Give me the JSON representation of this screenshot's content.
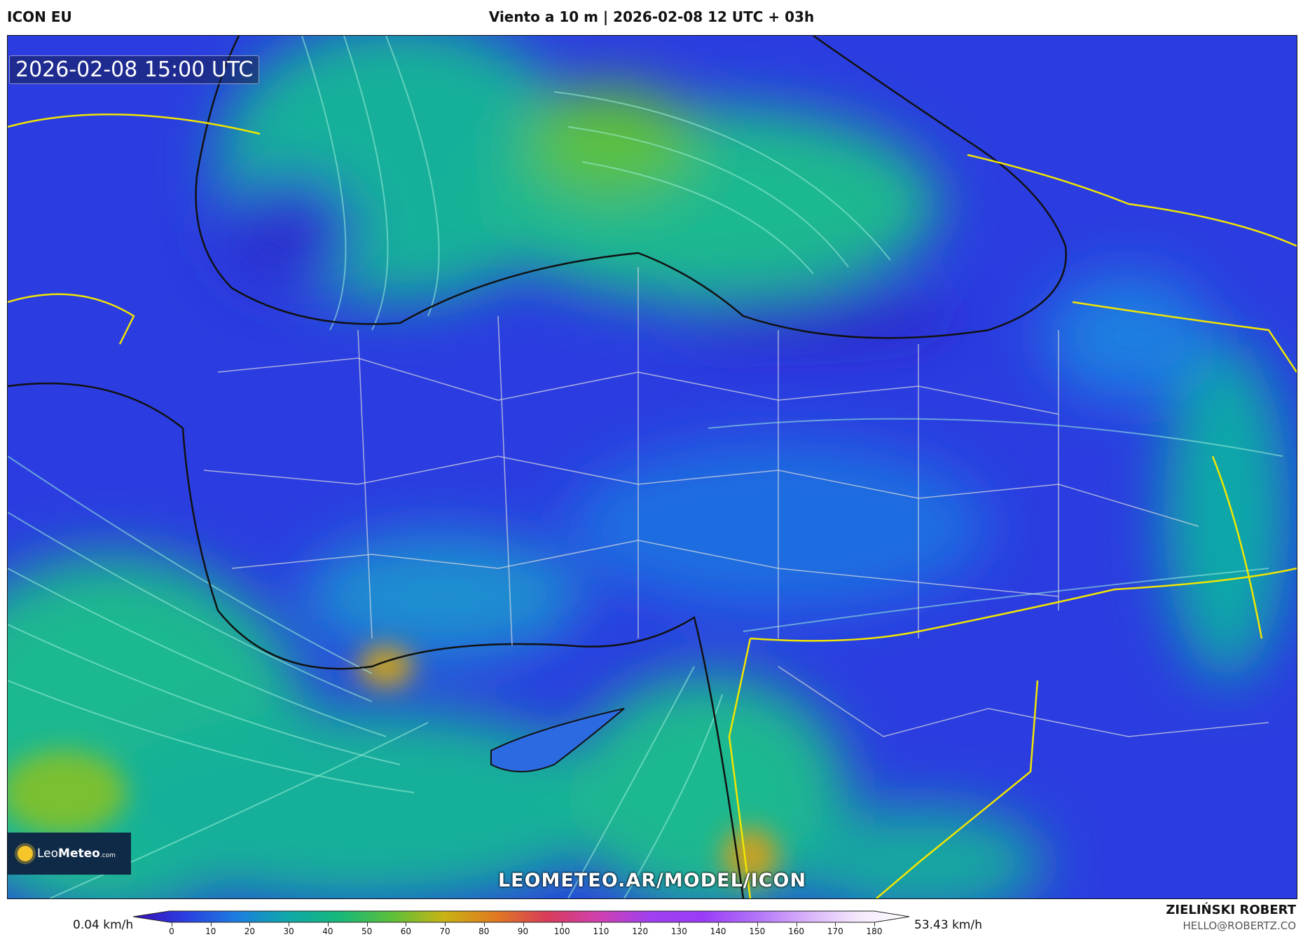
{
  "header": {
    "model": "ICON EU",
    "title": "Viento a 10 m | 2026-02-08 12 UTC + 03h"
  },
  "map": {
    "valid_time": "2026-02-08 15:00 UTC",
    "watermark_url": "LEOMETEO.AR/MODEL/ICON",
    "logo_text_light": "Leo",
    "logo_text_bold": "Meteo",
    "logo_suffix": ".com"
  },
  "legend": {
    "min_label": "0.04 km/h",
    "max_label": "53.43 km/h",
    "ticks": [
      "0",
      "10",
      "20",
      "30",
      "40",
      "50",
      "60",
      "70",
      "80",
      "90",
      "100",
      "110",
      "120",
      "130",
      "140",
      "150",
      "160",
      "170",
      "180"
    ],
    "colors": [
      "#3a0fb8",
      "#2b3de0",
      "#1c7ee0",
      "#10a8a8",
      "#17b87a",
      "#5cbf3a",
      "#c8b414",
      "#e07a20",
      "#d83c5a",
      "#d040b0",
      "#a040f0",
      "#9a3cf8",
      "#b070f8",
      "#d8b0fa",
      "#f4e8fc",
      "#ffffff"
    ]
  },
  "credit": {
    "name": "ZIELIŃSKI ROBERT",
    "email": "HELLO@ROBERTZ.CO"
  }
}
